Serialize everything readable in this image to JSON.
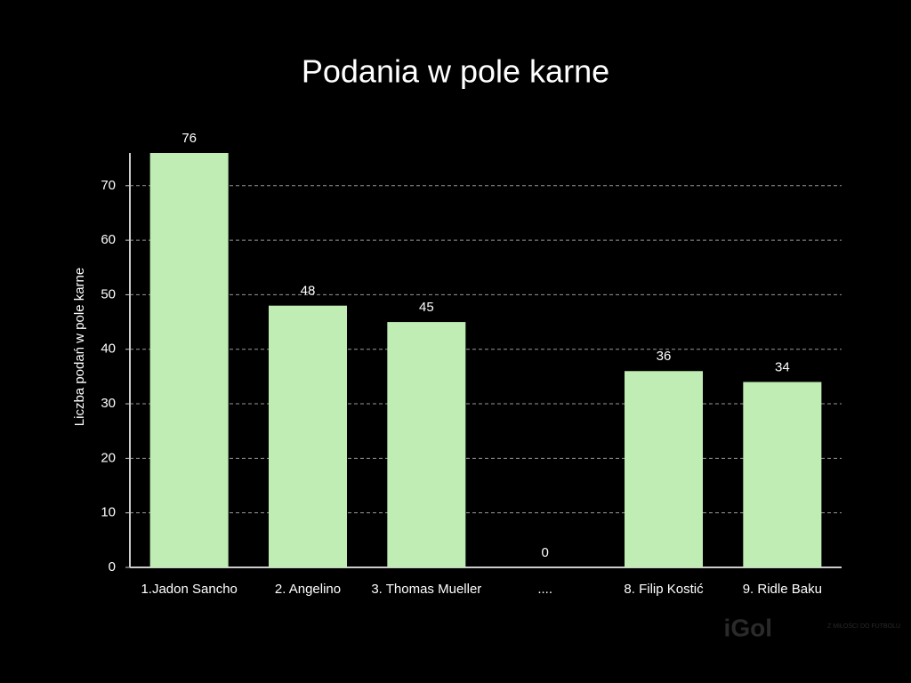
{
  "chart_data": {
    "type": "bar",
    "title": "Podania w pole karne",
    "ylabel": "Liczba podań w pole karne",
    "categories": [
      "1.Jadon Sancho",
      "2. Angelino",
      "3. Thomas Mueller",
      "....",
      "8. Filip Kostić",
      "9. Ridle Baku"
    ],
    "values": [
      76,
      48,
      45,
      0,
      36,
      34
    ],
    "color": "#c0edb3",
    "ylim": [
      0,
      76
    ],
    "yticks": [
      0,
      10,
      20,
      30,
      40,
      50,
      60,
      70
    ],
    "grid": true
  },
  "watermark": {
    "logo": "iGol",
    "tagline": "Z MIŁOŚCI DO FUTBOLU"
  }
}
